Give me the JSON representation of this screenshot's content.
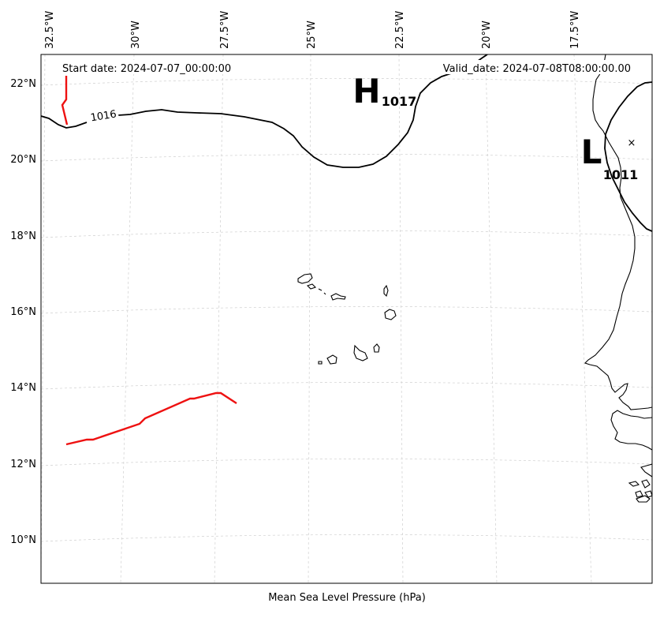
{
  "header": {
    "start_label": "Start date: 2024-07-07_00:00:00",
    "valid_label": "Valid_date: 2024-07-08T08:00:00.00"
  },
  "xlabel": "Mean Sea Level Pressure (hPa)",
  "lon_ticks": [
    "32.5°W",
    "30°W",
    "27.5°W",
    "25°W",
    "22.5°W",
    "20°W",
    "17.5°W"
  ],
  "lat_ticks": [
    "22°N",
    "20°N",
    "18°N",
    "16°N",
    "14°N",
    "12°N",
    "10°N"
  ],
  "isobars": [
    {
      "value": 1016,
      "label": "1016"
    }
  ],
  "pressure_centers": [
    {
      "type": "high",
      "letter": "H",
      "value_label": "1017"
    },
    {
      "type": "low",
      "letter": "L",
      "value_label": "1011"
    }
  ],
  "storm_marker": {
    "symbol": "×"
  },
  "tracks": [
    {
      "name": "track-north",
      "color": "#ee1111"
    },
    {
      "name": "track-south",
      "color": "#ee1111"
    }
  ],
  "colors": {
    "track": "#ee1111",
    "isobar": "#000000",
    "grid": "#cfcfcf",
    "coast": "#000000"
  }
}
